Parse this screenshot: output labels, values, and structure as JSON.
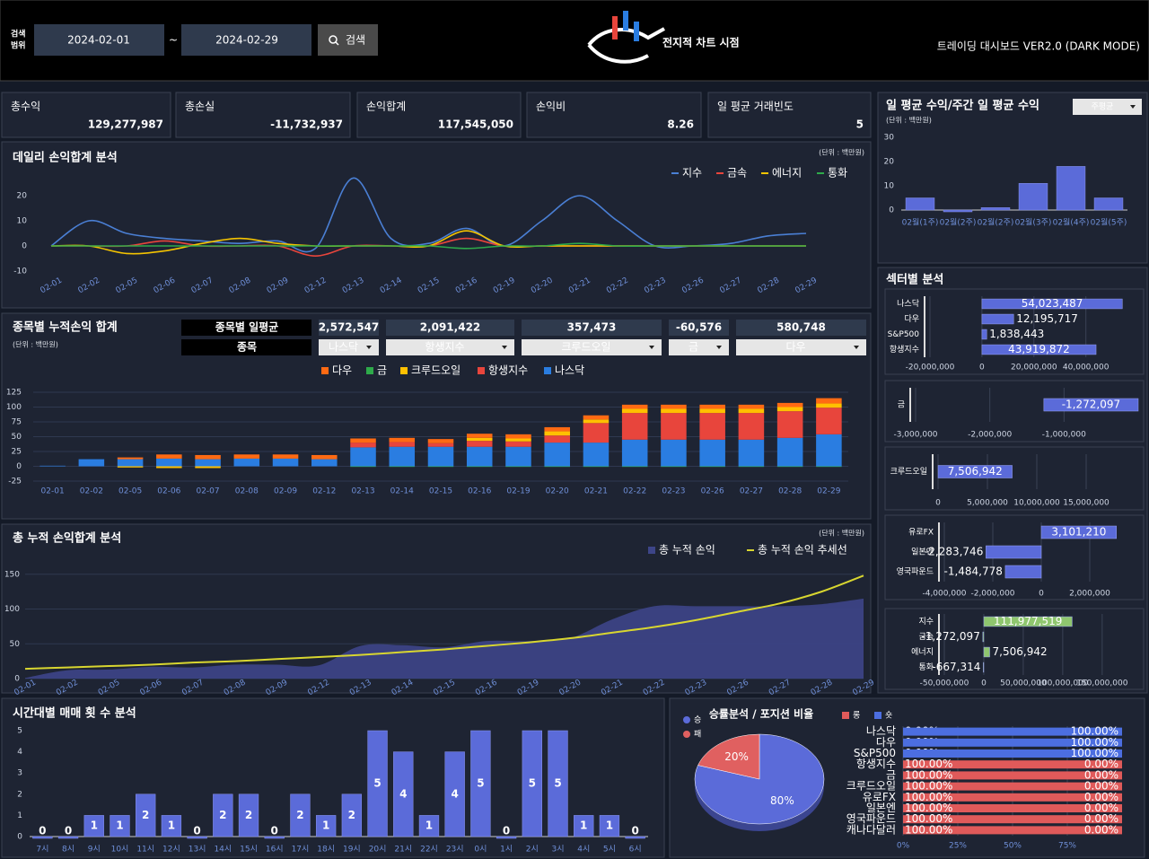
{
  "header": {
    "search_label": [
      "검색",
      "범위"
    ],
    "date_from": "2024-02-01",
    "date_sep": "~",
    "date_to": "2024-02-29",
    "search_button": "검색",
    "logo": "전지적 차트 시점",
    "subtitle": "트레이딩 대시보드 VER2.0 (DARK MODE)"
  },
  "kpis": [
    {
      "label": "총수익",
      "value": "129,277,987",
      "color": "#6fa8ff"
    },
    {
      "label": "총손실",
      "value": "-11,732,937",
      "color": "#ff3b3b"
    },
    {
      "label": "손익합계",
      "value": "117,545,050",
      "color": "#a8e0a8"
    },
    {
      "label": "손익비",
      "value": "8.26",
      "color": "#c4e6a8"
    },
    {
      "label": "일 평균 거래빈도",
      "value": "5",
      "color": "#c4e6a8"
    }
  ],
  "chart_data": [
    {
      "type": "line",
      "title": "데일리 손익합계 분석",
      "unit": "(단위 : 백만원)",
      "categories": [
        "02-01",
        "02-02",
        "02-05",
        "02-06",
        "02-07",
        "02-08",
        "02-09",
        "02-12",
        "02-13",
        "02-14",
        "02-15",
        "02-16",
        "02-19",
        "02-20",
        "02-21",
        "02-22",
        "02-23",
        "02-26",
        "02-27",
        "02-28",
        "02-29"
      ],
      "series": [
        {
          "name": "지수",
          "color": "#4a7fd4",
          "values": [
            0,
            10,
            5,
            3,
            2,
            1,
            2,
            -1,
            27,
            3,
            1,
            7,
            0,
            10,
            20,
            10,
            0,
            0,
            1,
            4,
            5
          ]
        },
        {
          "name": "금속",
          "color": "#e8453c",
          "values": [
            0,
            0,
            0,
            2,
            0,
            0,
            0,
            -4,
            0,
            0,
            0,
            3,
            0,
            0,
            0,
            0,
            0,
            0,
            0,
            0,
            0
          ]
        },
        {
          "name": "에너지",
          "color": "#f5c400",
          "values": [
            0,
            0,
            -3,
            -2,
            1,
            3,
            1,
            0,
            0,
            0,
            0,
            6,
            0,
            0,
            0,
            0,
            0,
            0,
            0,
            0,
            0
          ]
        },
        {
          "name": "통화",
          "color": "#2eaa4a",
          "values": [
            0,
            0,
            0,
            0,
            0,
            0,
            0,
            0,
            0,
            0,
            0,
            -1,
            0,
            0,
            1,
            0,
            0,
            0,
            0,
            0,
            0
          ]
        }
      ],
      "ylim": [
        -10,
        30
      ],
      "yticks": [
        -10,
        0,
        10,
        20
      ],
      "grid": false
    },
    {
      "type": "stacked_bar",
      "title": "종목별 누적손익 합계",
      "unit": "(단위 : 백만원)",
      "avg_label": "종목별 일평균",
      "avg_values": [
        "2,572,547",
        "2,091,422",
        "357,473",
        "-60,576",
        "580,748"
      ],
      "item_label": "종목",
      "items": [
        "나스닥",
        "항생지수",
        "크루드오일",
        "금",
        "다우"
      ],
      "categories": [
        "02-01",
        "02-02",
        "02-05",
        "02-06",
        "02-07",
        "02-08",
        "02-09",
        "02-12",
        "02-13",
        "02-14",
        "02-15",
        "02-16",
        "02-19",
        "02-20",
        "02-21",
        "02-22",
        "02-23",
        "02-26",
        "02-27",
        "02-28",
        "02-29"
      ],
      "series": [
        {
          "name": "다우",
          "color": "#ff6a13",
          "values": [
            0,
            0,
            3,
            7,
            7,
            7,
            7,
            7,
            7,
            7,
            7,
            7,
            7,
            7,
            7,
            7,
            7,
            7,
            7,
            7,
            9
          ]
        },
        {
          "name": "금",
          "color": "#2eaa4a",
          "values": [
            0,
            0,
            0,
            0,
            0,
            0,
            0,
            0,
            -1,
            -1,
            -1,
            -1,
            -1,
            -1,
            -1,
            -1,
            -1,
            -1,
            -1,
            -1,
            -1
          ]
        },
        {
          "name": "크루드오일",
          "color": "#ffc000",
          "values": [
            0,
            0,
            -2,
            -3,
            -3,
            0,
            0,
            0,
            0,
            0,
            0,
            5,
            5,
            7,
            6,
            7,
            7,
            7,
            7,
            7,
            7
          ]
        },
        {
          "name": "항생지수",
          "color": "#e8453c",
          "values": [
            0,
            0,
            0,
            0,
            0,
            0,
            0,
            0,
            8,
            8,
            6,
            10,
            9,
            12,
            33,
            45,
            45,
            45,
            45,
            45,
            45
          ]
        },
        {
          "name": "나스닥",
          "color": "#2a7de1",
          "values": [
            1,
            12,
            12,
            13,
            12,
            13,
            13,
            12,
            32,
            33,
            33,
            33,
            33,
            40,
            40,
            45,
            45,
            45,
            45,
            48,
            54
          ]
        }
      ],
      "ylim": [
        -25,
        125
      ],
      "yticks": [
        -25,
        0,
        25,
        50,
        75,
        100,
        125
      ],
      "grid": true
    },
    {
      "type": "area",
      "title": "총 누적 손익합계 분석",
      "unit": "(단위 : 백만원)",
      "categories": [
        "02-01",
        "02-02",
        "02-05",
        "02-06",
        "02-07",
        "02-08",
        "02-09",
        "02-12",
        "02-13",
        "02-14",
        "02-15",
        "02-16",
        "02-19",
        "02-20",
        "02-21",
        "02-22",
        "02-23",
        "02-26",
        "02-27",
        "02-28",
        "02-29"
      ],
      "series": [
        {
          "name": "총 누적 손익",
          "color": "#3d4588",
          "values": [
            1,
            12,
            13,
            17,
            16,
            20,
            20,
            19,
            47,
            48,
            45,
            54,
            54,
            58,
            85,
            104,
            104,
            104,
            104,
            107,
            115
          ]
        },
        {
          "name": "총 누적 손익 추세선",
          "color": "#d8d630",
          "values": [
            14,
            16,
            18,
            20,
            23,
            25,
            28,
            31,
            34,
            38,
            42,
            47,
            52,
            58,
            66,
            74,
            84,
            96,
            108,
            125,
            148
          ]
        }
      ],
      "ylim": [
        0,
        160
      ],
      "yticks": [
        0,
        50,
        100,
        150
      ],
      "grid": true
    },
    {
      "type": "bar",
      "title": "시간대별 매매 횟 수 분석",
      "color": "#5b6bd9",
      "categories": [
        "7시",
        "8시",
        "9시",
        "10시",
        "11시",
        "12시",
        "13시",
        "14시",
        "15시",
        "16시",
        "17시",
        "18시",
        "19시",
        "20시",
        "21시",
        "22시",
        "23시",
        "0시",
        "1시",
        "2시",
        "3시",
        "4시",
        "5시",
        "6시"
      ],
      "values": [
        0,
        0,
        1,
        1,
        2,
        1,
        0,
        2,
        2,
        0,
        2,
        1,
        2,
        5,
        4,
        1,
        4,
        5,
        0,
        5,
        5,
        1,
        1,
        0
      ],
      "ylim": [
        0,
        5
      ],
      "yticks": [
        0,
        1,
        2,
        3,
        4,
        5
      ],
      "grid": false
    },
    {
      "type": "bar",
      "title": "일 평균 수익/주간 일 평균 수익",
      "unit": "(단위 : 백만원)",
      "control": "주평균",
      "color": "#5b6bd9",
      "categories": [
        "02월(1주)",
        "02월(2주)",
        "02월(2주)",
        "02월(3주)",
        "02월(4주)",
        "02월(5주)"
      ],
      "values": [
        5,
        0,
        1,
        11,
        18,
        5
      ],
      "ylim": [
        0,
        30
      ],
      "yticks": [
        0,
        10,
        20,
        30
      ],
      "grid": false
    },
    {
      "type": "hbar",
      "title": "섹터별 분석",
      "color": "#5b6bd9",
      "categories": [
        "나스닥",
        "다우",
        "S&P500",
        "항생지수"
      ],
      "values": [
        54023487,
        12195717,
        1838443,
        43919872
      ],
      "value_labels": [
        "54,023,487",
        "12,195,717",
        "1,838,443",
        "43,919,872"
      ],
      "xlim": [
        -20000000,
        56000000
      ],
      "xticks": [
        {
          "value": -20000000,
          "label": "-20,000,000"
        },
        0,
        {
          "value": 20000000,
          "label": "20,000,000"
        },
        {
          "value": 40000000,
          "label": "40,000,000"
        }
      ]
    },
    {
      "type": "hbar",
      "color": "#5b6bd9",
      "categories": [
        "금"
      ],
      "values": [
        -1272097
      ],
      "value_labels": [
        "-1,272,097"
      ],
      "xlim": [
        -3000000,
        0
      ],
      "xticks": [
        {
          "value": -3000000,
          "label": "-3,000,000"
        },
        {
          "value": -2000000,
          "label": "-2,000,000"
        },
        {
          "value": -1000000,
          "label": "-1,000,000"
        }
      ]
    },
    {
      "type": "hbar",
      "color": "#5b6bd9",
      "categories": [
        "크루드오일"
      ],
      "values": [
        7506942
      ],
      "value_labels": [
        "7,506,942"
      ],
      "xlim": [
        0,
        20000000
      ],
      "xticks": [
        0,
        {
          "value": 5000000,
          "label": "5,000,000"
        },
        {
          "value": 10000000,
          "label": "10,000,000"
        },
        {
          "value": 15000000,
          "label": "15,000,000"
        }
      ]
    },
    {
      "type": "hbar",
      "color": "#5b6bd9",
      "categories": [
        "유로FX",
        "일본엔",
        "영국파운드"
      ],
      "values": [
        3101210,
        -2283746,
        -1484778
      ],
      "value_labels": [
        "3,101,210",
        "-2,283,746",
        "-1,484,778"
      ],
      "xlim": [
        -4000000,
        4000000
      ],
      "xticks": [
        {
          "value": -4000000,
          "label": "-4,000,000"
        },
        {
          "value": -2000000,
          "label": "-2,000,000"
        },
        0,
        {
          "value": 2000000,
          "label": "2,000,000"
        }
      ]
    },
    {
      "type": "hbar",
      "color": "#8fc66e",
      "categories": [
        "지수",
        "금속",
        "에너지",
        "통화"
      ],
      "values": [
        111977519,
        -1272097,
        7506942,
        -667314
      ],
      "value_labels": [
        "111,977,519",
        "-1,272,097",
        "7,506,942",
        "-667,314"
      ],
      "xlim": [
        -50000000,
        190000000
      ],
      "xticks": [
        {
          "value": -50000000,
          "label": "-50,000,000"
        },
        0,
        {
          "value": 50000000,
          "label": "50,000,000"
        },
        {
          "value": 100000000,
          "label": "100,000,000"
        },
        {
          "value": 150000000,
          "label": "150,000,000"
        }
      ]
    },
    {
      "type": "pie",
      "title": "승률분석 / 포지션 비율",
      "categories": [
        "승",
        "패"
      ],
      "values": [
        80,
        20
      ],
      "value_labels": [
        "80%",
        "20%"
      ],
      "colors": [
        "#5b6bd9",
        "#e06060"
      ]
    },
    {
      "type": "hbar100",
      "categories": [
        "나스닥",
        "다우",
        "S&P500",
        "항생지수",
        "금",
        "크루드오일",
        "유로FX",
        "일본엔",
        "영국파운드",
        "캐나다달러"
      ],
      "series": [
        {
          "name": "롱",
          "color": "#e05a5a",
          "values": [
            0,
            0,
            0,
            100,
            100,
            100,
            100,
            100,
            100,
            100
          ],
          "value_labels": [
            "0.00%",
            "0.00%",
            "0.00%",
            "100.00%",
            "100.00%",
            "100.00%",
            "100.00%",
            "100.00%",
            "100.00%",
            "100.00%"
          ]
        },
        {
          "name": "숏",
          "color": "#4c6ee0",
          "values": [
            100,
            100,
            100,
            0,
            0,
            0,
            0,
            0,
            0,
            0
          ],
          "value_labels": [
            "100.00%",
            "100.00%",
            "100.00%",
            "0.00%",
            "0.00%",
            "0.00%",
            "0.00%",
            "0.00%",
            "0.00%",
            "0.00%"
          ]
        }
      ],
      "xlim": [
        0,
        100
      ],
      "xticks": [
        {
          "value": 0,
          "label": "0%"
        },
        {
          "value": 25,
          "label": "25%"
        },
        {
          "value": 50,
          "label": "50%"
        },
        {
          "value": 75,
          "label": "75%"
        }
      ]
    }
  ]
}
